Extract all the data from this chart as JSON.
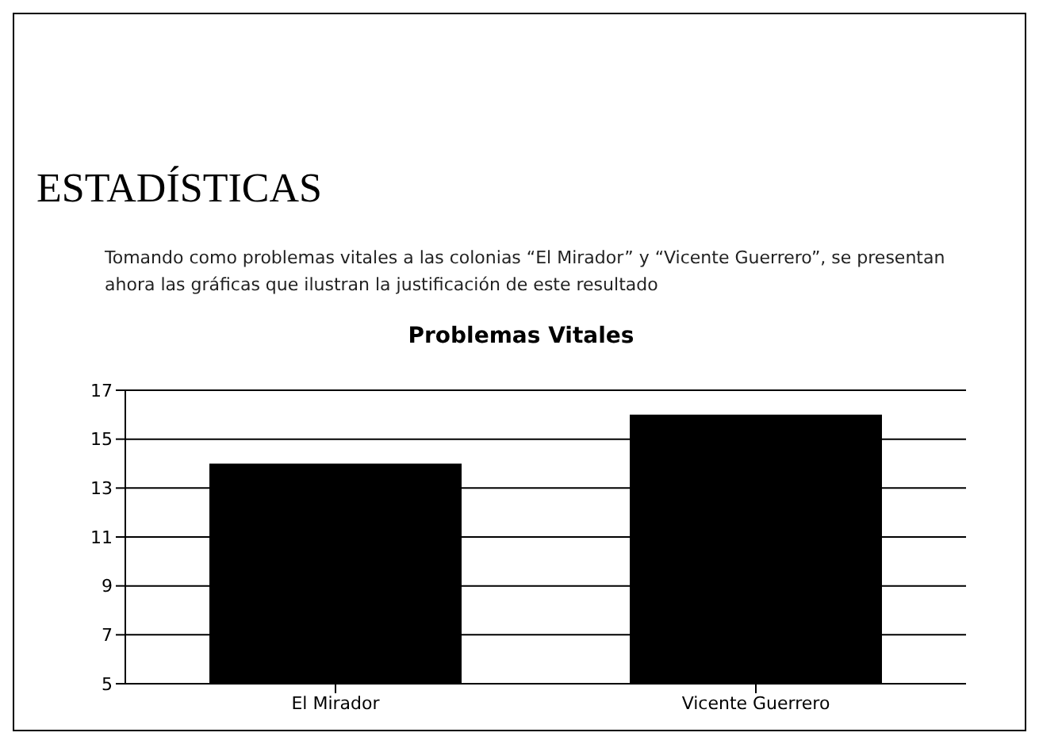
{
  "chart_data": {
    "type": "bar",
    "title": "Problemas Vitales",
    "annotations": [
      "ESTADÍSTICAS",
      "Tomando como problemas vitales a las colonias “El Mirador” y “Vicente Guerrero”, se presentan ahora las gráficas que ilustran la justificación de este resultado"
    ],
    "categories": [
      "El Mirador",
      "Vicente Guerrero"
    ],
    "values": [
      14,
      16
    ],
    "color": "#000000",
    "ylim": [
      5,
      17
    ],
    "yticks": [
      5,
      7,
      9,
      11,
      13,
      15,
      17
    ],
    "grid": "y"
  }
}
